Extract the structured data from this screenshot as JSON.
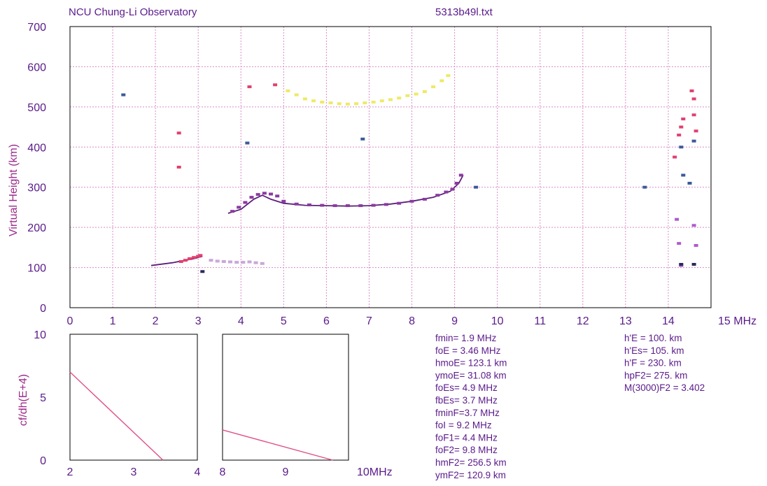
{
  "header": {
    "observatory": "NCU Chung-Li Observatory",
    "filename": "5313b49l.txt"
  },
  "chart_data": [
    {
      "type": "scatter",
      "title": "",
      "xlabel": "",
      "x_unit_label": "15 MHz",
      "ylabel": "Virtual Height (km)",
      "xlim": [
        0,
        15
      ],
      "ylim": [
        0,
        700
      ],
      "xticks": [
        "0",
        "1",
        "2",
        "3",
        "4",
        "5",
        "6",
        "7",
        "8",
        "9",
        "10",
        "11",
        "12",
        "13",
        "14"
      ],
      "yticks": [
        "0",
        "100",
        "200",
        "300",
        "400",
        "500",
        "600",
        "700"
      ],
      "grid": true,
      "series": [
        {
          "color": "#5b1f7a",
          "style": "line",
          "x": [
            1.9,
            2.4,
            2.9,
            3.1
          ],
          "y": [
            105,
            112,
            122,
            128
          ]
        },
        {
          "color": "#5b1f7a",
          "style": "line",
          "x": [
            3.7,
            4.0,
            4.3,
            4.5,
            4.7,
            5.0,
            5.5,
            6.0,
            6.5,
            7.0,
            7.5,
            8.0,
            8.5,
            8.9,
            9.1,
            9.2
          ],
          "y": [
            235,
            245,
            270,
            280,
            270,
            260,
            255,
            254,
            253,
            254,
            258,
            265,
            275,
            290,
            310,
            330
          ]
        },
        {
          "color": "#8a3aa0",
          "style": "points",
          "x": [
            3.8,
            3.95,
            4.1,
            4.25,
            4.4,
            4.55,
            4.7,
            4.85,
            5.0,
            5.3,
            5.6,
            5.9,
            6.2,
            6.5,
            6.8,
            7.1,
            7.4,
            7.7,
            8.0,
            8.3,
            8.6,
            8.8,
            8.95,
            9.05,
            9.15
          ],
          "y": [
            240,
            250,
            262,
            275,
            282,
            285,
            283,
            278,
            265,
            258,
            256,
            255,
            254,
            254,
            254,
            255,
            257,
            260,
            265,
            270,
            280,
            288,
            295,
            310,
            330
          ]
        },
        {
          "color": "#e04070",
          "style": "points",
          "x": [
            2.6,
            2.7,
            2.8,
            2.9,
            3.0,
            3.05
          ],
          "y": [
            115,
            118,
            122,
            125,
            128,
            130
          ]
        },
        {
          "color": "#eeea66",
          "style": "points",
          "x": [
            5.1,
            5.3,
            5.5,
            5.7,
            5.9,
            6.1,
            6.3,
            6.5,
            6.7,
            6.9,
            7.1,
            7.3,
            7.5,
            7.7,
            7.9,
            8.1,
            8.3,
            8.5,
            8.7,
            8.85
          ],
          "y": [
            540,
            530,
            520,
            515,
            512,
            510,
            508,
            507,
            508,
            510,
            512,
            515,
            518,
            522,
            528,
            532,
            538,
            550,
            565,
            578
          ]
        },
        {
          "color": "#c8a8d8",
          "style": "points",
          "x": [
            3.3,
            3.45,
            3.6,
            3.75,
            3.9,
            4.05,
            4.2,
            4.35,
            4.5
          ],
          "y": [
            118,
            116,
            115,
            114,
            113,
            113,
            114,
            112,
            110
          ]
        },
        {
          "color": "#e04070",
          "style": "points",
          "x": [
            2.55,
            2.55,
            4.2,
            4.8,
            14.15,
            14.25,
            14.3,
            14.35,
            14.55,
            14.6,
            14.6,
            14.65
          ],
          "y": [
            435,
            350,
            550,
            555,
            375,
            430,
            450,
            470,
            540,
            520,
            480,
            440
          ]
        },
        {
          "color": "#3a5a9a",
          "style": "points",
          "x": [
            1.25,
            4.15,
            6.85,
            9.5,
            13.45,
            14.3,
            14.35,
            14.5,
            14.6
          ],
          "y": [
            530,
            410,
            420,
            300,
            300,
            400,
            330,
            310,
            415
          ]
        },
        {
          "color": "#b05ad0",
          "style": "points",
          "x": [
            14.2,
            14.25,
            14.3,
            14.6,
            14.65
          ],
          "y": [
            220,
            160,
            105,
            205,
            155
          ]
        },
        {
          "color": "#2a2a5a",
          "style": "points",
          "x": [
            3.1,
            14.3,
            14.6
          ],
          "y": [
            90,
            108,
            108
          ]
        }
      ]
    },
    {
      "type": "line",
      "title": "",
      "ylabel": "cf/dh(E+4)",
      "xlim": [
        2,
        4
      ],
      "ylim": [
        0,
        10
      ],
      "xticks": [
        "2",
        "3",
        "4"
      ],
      "yticks": [
        "0",
        "5",
        "10"
      ],
      "grid": false,
      "series": [
        {
          "color": "#e0508a",
          "x": [
            2.0,
            3.46
          ],
          "y": [
            7.0,
            0.0
          ]
        }
      ]
    },
    {
      "type": "line",
      "title": "",
      "x_unit_label": "10MHz",
      "xlim": [
        8,
        10
      ],
      "ylim": [
        0,
        10
      ],
      "xticks": [
        "8",
        "9"
      ],
      "grid": false,
      "series": [
        {
          "color": "#e0508a",
          "x": [
            8.0,
            9.75
          ],
          "y": [
            2.4,
            0.0
          ]
        }
      ]
    }
  ],
  "parameters_left": [
    "fmin= 1.9 MHz",
    "foE = 3.46 MHz",
    "hmoE= 123.1 km",
    "ymoE= 31.08 km",
    "foEs= 4.9 MHz",
    "fbEs= 3.7 MHz",
    "fminF=3.7 MHz",
    "foI = 9.2 MHz",
    "foF1= 4.4 MHz",
    "foF2= 9.8 MHz",
    "hmF2= 256.5 km",
    "ymF2= 120.9 km"
  ],
  "parameters_right": [
    "h'E = 100. km",
    "h'Es= 105. km",
    "h'F = 230. km",
    "hpF2= 275. km",
    "M(3000)F2 = 3.402"
  ],
  "colors": {
    "text": "#5a1a8a",
    "grid": "#d98cc8",
    "frame": "#000000",
    "ylabel": "#9b2b8a"
  }
}
